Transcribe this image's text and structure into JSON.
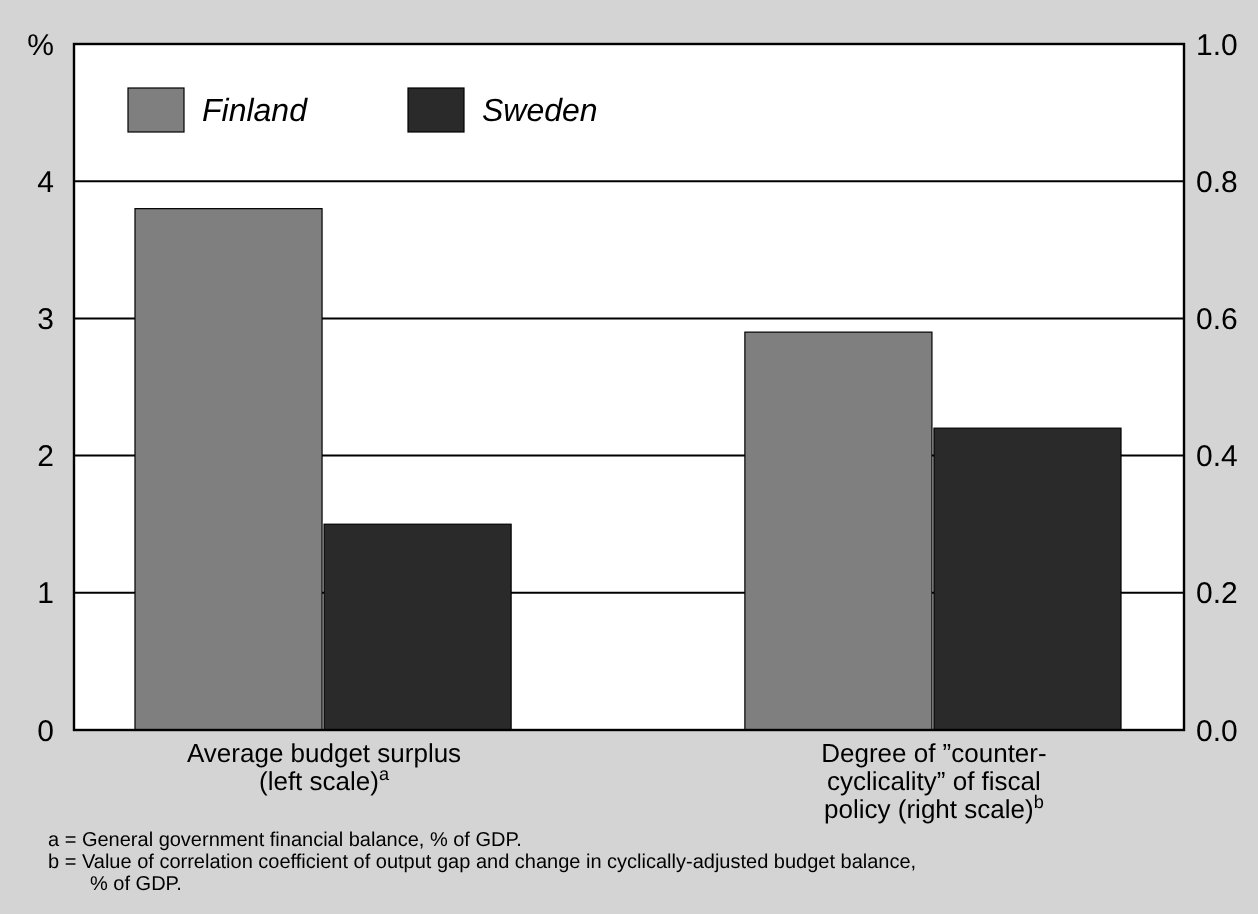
{
  "chart_data": {
    "type": "bar",
    "ylabel": "%",
    "categories": [
      "Average budget surplus (left scale)$^{a}$",
      "Degree of ”counter-cyclicality” of fiscal policy (right scale)$^{b}$"
    ],
    "series": [
      {
        "name": "Finland",
        "color": "#7f7f7f",
        "values": [
          3.8,
          null
        ]
      },
      {
        "name": "Sweden",
        "color": "#2a2a2a",
        "values": [
          1.5,
          null
        ]
      },
      {
        "color": "#7f7f7f",
        "values": [
          null,
          0.58
        ],
        "axis": "y2"
      },
      {
        "color": "#2a2a2a",
        "values": [
          null,
          0.44
        ],
        "axis": "y2"
      }
    ],
    "ylim": [
      0,
      5
    ],
    "yticks": [
      0,
      1,
      2,
      3,
      4
    ],
    "y2lim": [
      0,
      1
    ],
    "y2ticks": [
      {
        "value": 0,
        "label": "0.0"
      },
      0.2,
      0.4,
      0.6,
      0.8,
      {
        "value": 1,
        "label": "1.0"
      }
    ],
    "grid": "y",
    "legend": "top left",
    "annotations": [
      "a = General government financial balance, % of GDP.",
      "b = Value of correlation coefficient of output gap and change in cyclically-adjusted budget balance, % of GDP."
    ]
  }
}
